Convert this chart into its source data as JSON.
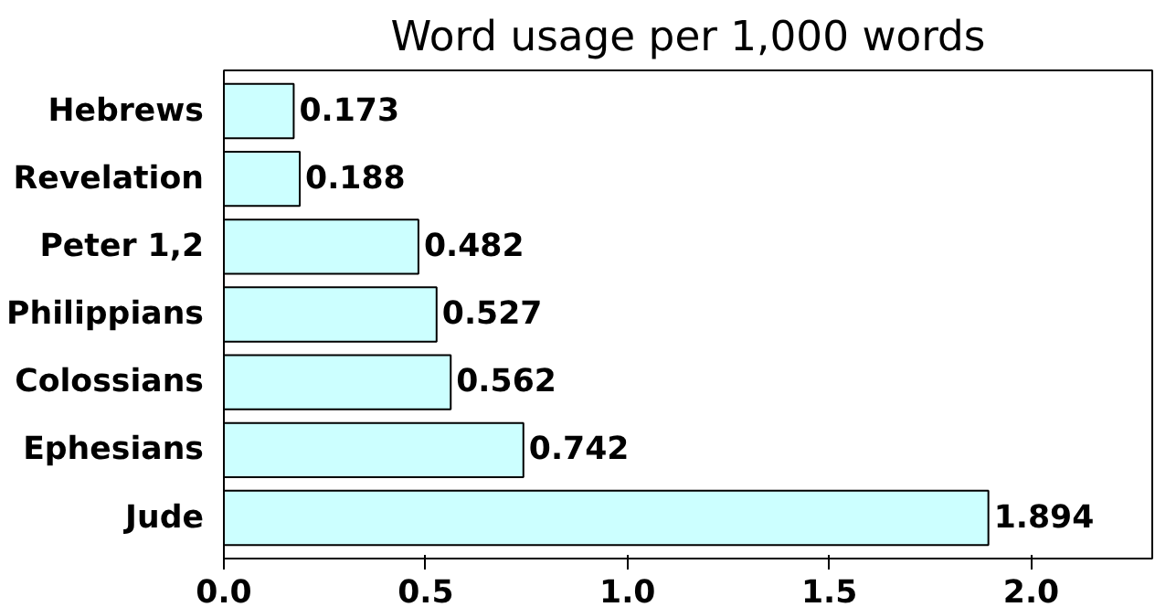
{
  "chart_data": {
    "type": "bar",
    "orientation": "horizontal",
    "title": "Word usage per 1,000 words",
    "categories": [
      "Hebrews",
      "Revelation",
      "Peter 1,2",
      "Philippians",
      "Colossians",
      "Ephesians",
      "Jude"
    ],
    "values": [
      0.173,
      0.188,
      0.482,
      0.527,
      0.562,
      0.742,
      1.894
    ],
    "color": "#ccffff",
    "xlim": [
      0,
      2.3
    ],
    "xticks": [
      {
        "value": 0,
        "label": "0.0"
      },
      {
        "value": 0.5,
        "label": "0.5"
      },
      {
        "value": 1,
        "label": "1.0"
      },
      {
        "value": 1.5,
        "label": "1.5"
      },
      {
        "value": 2,
        "label": "2.0"
      }
    ],
    "data_labels": true,
    "grid": false
  }
}
